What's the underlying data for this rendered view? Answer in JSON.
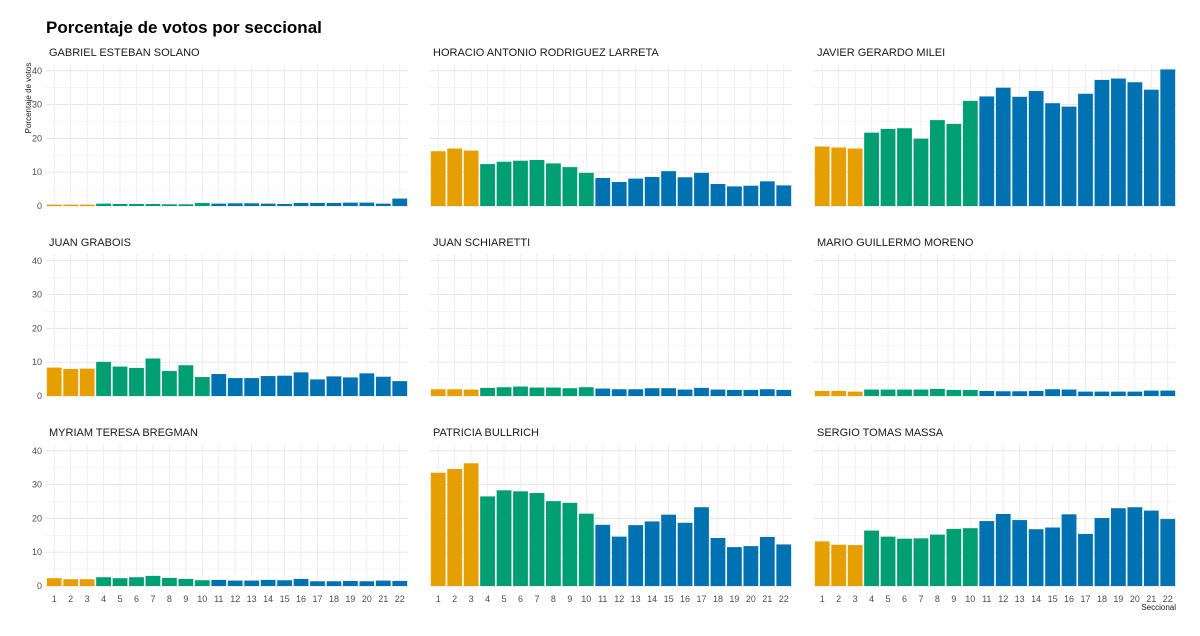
{
  "chart_data": {
    "type": "bar",
    "title": "Porcentaje de votos por seccional",
    "xlabel": "Seccional",
    "ylabel": "Porcentaje de votos",
    "ylim": [
      0,
      42
    ],
    "yticks": [
      0,
      10,
      20,
      30,
      40
    ],
    "grid": true,
    "categories": [
      "1",
      "2",
      "3",
      "4",
      "5",
      "6",
      "7",
      "8",
      "9",
      "10",
      "11",
      "12",
      "13",
      "14",
      "15",
      "16",
      "17",
      "18",
      "19",
      "20",
      "21",
      "22"
    ],
    "colors": [
      "#E69F00",
      "#E69F00",
      "#E69F00",
      "#009E73",
      "#009E73",
      "#009E73",
      "#009E73",
      "#009E73",
      "#009E73",
      "#009E73",
      "#0072B2",
      "#0072B2",
      "#0072B2",
      "#0072B2",
      "#0072B2",
      "#0072B2",
      "#0072B2",
      "#0072B2",
      "#0072B2",
      "#0072B2",
      "#0072B2",
      "#0072B2"
    ],
    "series": [
      {
        "name": "GABRIEL ESTEBAN SOLANO",
        "values": [
          0.4,
          0.4,
          0.4,
          0.7,
          0.6,
          0.6,
          0.6,
          0.5,
          0.5,
          0.9,
          0.7,
          0.8,
          0.8,
          0.7,
          0.6,
          0.9,
          0.9,
          0.9,
          1.0,
          1.0,
          0.7,
          2.2
        ]
      },
      {
        "name": "HORACIO ANTONIO RODRIGUEZ LARRETA",
        "values": [
          16.2,
          17.0,
          16.4,
          12.4,
          13.1,
          13.4,
          13.6,
          12.6,
          11.5,
          9.8,
          8.3,
          7.1,
          8.1,
          8.6,
          10.3,
          8.5,
          9.8,
          6.5,
          5.8,
          6.0,
          7.3,
          6.1
        ]
      },
      {
        "name": "JAVIER GERARDO MILEI",
        "values": [
          17.6,
          17.3,
          17.0,
          21.7,
          22.8,
          23.0,
          19.9,
          25.4,
          24.3,
          31.1,
          32.4,
          35.0,
          32.3,
          34.0,
          30.4,
          29.4,
          33.2,
          37.3,
          37.7,
          36.6,
          34.4,
          40.4
        ]
      },
      {
        "name": "JUAN GRABOIS",
        "values": [
          8.4,
          8.0,
          8.1,
          10.1,
          8.7,
          8.3,
          11.1,
          7.4,
          9.1,
          5.6,
          6.5,
          5.3,
          5.3,
          5.9,
          6.0,
          7.0,
          4.9,
          5.8,
          5.5,
          6.7,
          5.7,
          4.4
        ]
      },
      {
        "name": "JUAN SCHIARETTI",
        "values": [
          2.0,
          2.0,
          1.9,
          2.4,
          2.6,
          2.8,
          2.5,
          2.5,
          2.3,
          2.6,
          2.2,
          2.0,
          2.0,
          2.3,
          2.3,
          1.9,
          2.4,
          1.9,
          1.8,
          1.8,
          2.0,
          1.8
        ]
      },
      {
        "name": "MARIO GUILLERMO MORENO",
        "values": [
          1.5,
          1.5,
          1.3,
          1.9,
          1.9,
          1.9,
          1.9,
          2.1,
          1.8,
          1.8,
          1.5,
          1.4,
          1.4,
          1.5,
          2.0,
          1.9,
          1.3,
          1.3,
          1.3,
          1.3,
          1.6,
          1.6
        ]
      },
      {
        "name": "MYRIAM TERESA BREGMAN",
        "values": [
          2.3,
          2.0,
          2.0,
          2.6,
          2.3,
          2.6,
          3.0,
          2.4,
          2.1,
          1.7,
          1.8,
          1.6,
          1.6,
          1.8,
          1.7,
          2.1,
          1.4,
          1.4,
          1.5,
          1.4,
          1.6,
          1.5
        ]
      },
      {
        "name": "PATRICIA BULLRICH",
        "values": [
          33.5,
          34.6,
          36.3,
          26.5,
          28.3,
          28.0,
          27.5,
          25.1,
          24.6,
          21.4,
          18.1,
          14.6,
          18.0,
          19.1,
          21.1,
          18.7,
          23.3,
          14.2,
          11.5,
          11.8,
          14.5,
          12.3
        ]
      },
      {
        "name": "SERGIO TOMAS MASSA",
        "values": [
          13.2,
          12.2,
          12.1,
          16.4,
          14.6,
          14.0,
          14.1,
          15.2,
          16.9,
          17.1,
          19.2,
          21.3,
          19.5,
          16.8,
          17.3,
          21.2,
          15.4,
          20.1,
          23.0,
          23.3,
          22.3,
          19.8
        ]
      }
    ]
  }
}
